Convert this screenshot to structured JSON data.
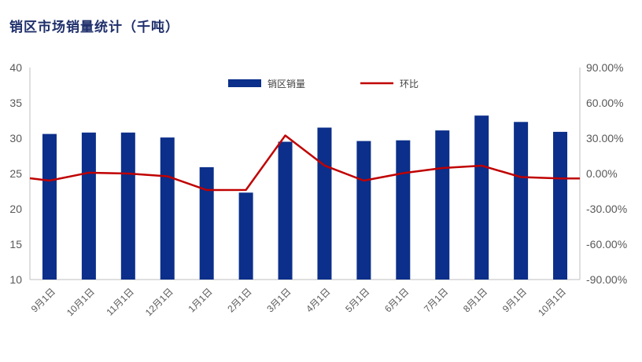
{
  "chart_data": {
    "type": "bar+line",
    "title": "销区市场销量统计（千吨）",
    "categories": [
      "9月1日",
      "10月1日",
      "11月1日",
      "12月1日",
      "1月1日",
      "2月1日",
      "3月1日",
      "4月1日",
      "5月1日",
      "6月1日",
      "7月1日",
      "8月1日",
      "9月1日",
      "10月1日"
    ],
    "series": [
      {
        "name": "销区销量",
        "type": "bar",
        "axis": "left",
        "color": "#0b2f8a",
        "values": [
          30.6,
          30.8,
          30.8,
          30.1,
          25.9,
          22.3,
          29.5,
          31.5,
          29.6,
          29.7,
          31.1,
          33.2,
          32.3,
          30.9
        ]
      },
      {
        "name": "环比",
        "type": "line",
        "axis": "right",
        "color": "#c00000",
        "values": [
          -6.0,
          0.7,
          0.0,
          -2.3,
          -14.0,
          -13.9,
          32.3,
          6.8,
          -6.0,
          0.3,
          4.7,
          6.7,
          -3.0,
          -4.2
        ]
      }
    ],
    "y_left": {
      "min": 10,
      "max": 40,
      "step": 5,
      "ticks": [
        "10",
        "15",
        "20",
        "25",
        "30",
        "35",
        "40"
      ]
    },
    "y_right": {
      "min": -90,
      "max": 90,
      "step": 30,
      "ticks": [
        "-90.00%",
        "-60.00%",
        "-30.00%",
        "0.00%",
        "30.00%",
        "60.00%",
        "90.00%"
      ]
    },
    "legend": {
      "position": "top-center",
      "items": [
        "销区销量",
        "环比"
      ]
    },
    "grid": false
  }
}
